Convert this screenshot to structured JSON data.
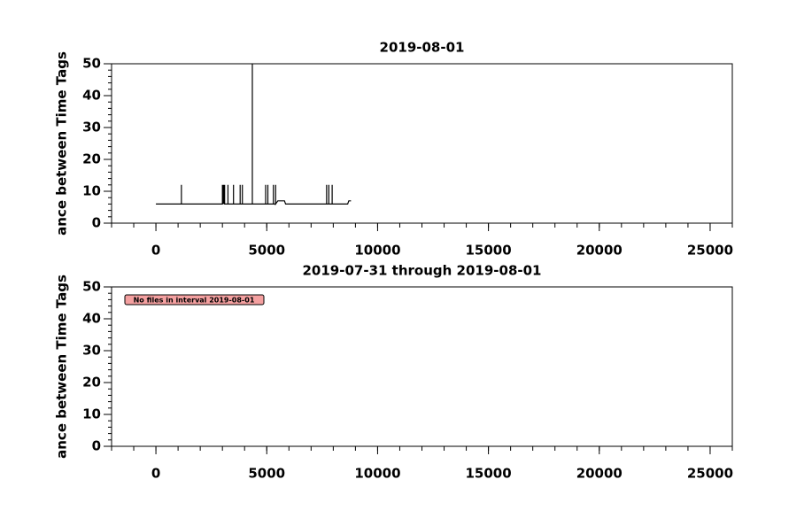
{
  "chart_data": [
    {
      "type": "line",
      "title": "2019-08-01",
      "y_label": "ance between Time Tags",
      "xlim": [
        -2000,
        26000
      ],
      "ylim": [
        0,
        50
      ],
      "xticks": [
        0,
        5000,
        10000,
        15000,
        20000,
        25000
      ],
      "yticks": [
        0,
        10,
        20,
        30,
        40,
        50
      ],
      "color": "#000000",
      "x": [
        0,
        1150,
        1150,
        1150,
        3000,
        3000,
        3000,
        3050,
        3050,
        3100,
        3100,
        3250,
        3250,
        3250,
        3500,
        3500,
        3500,
        3800,
        3800,
        3800,
        3900,
        3900,
        3900,
        4350,
        4350,
        4350,
        4950,
        4950,
        4950,
        5050,
        5050,
        5050,
        5300,
        5300,
        5300,
        5400,
        5400,
        5400,
        5500,
        5800,
        5850,
        7700,
        7700,
        7700,
        7800,
        7800,
        7800,
        7950,
        7950,
        7950,
        8650,
        8700,
        8800
      ],
      "values": [
        6,
        6,
        12,
        6,
        6,
        12,
        6,
        12,
        6,
        12,
        6,
        6,
        12,
        6,
        6,
        12,
        6,
        6,
        12,
        6,
        6,
        12,
        6,
        6,
        50,
        6,
        6,
        12,
        6,
        6,
        12,
        6,
        6,
        12,
        6,
        6,
        12,
        6,
        7,
        7,
        6,
        6,
        12,
        6,
        6,
        12,
        6,
        6,
        12,
        6,
        6,
        7,
        7
      ]
    },
    {
      "type": "line",
      "title": "2019-07-31 through 2019-08-01",
      "y_label": "ance between Time Tags",
      "xlim": [
        -2000,
        26000
      ],
      "ylim": [
        0,
        50
      ],
      "xticks": [
        0,
        5000,
        10000,
        15000,
        20000,
        25000
      ],
      "yticks": [
        0,
        10,
        20,
        30,
        40,
        50
      ],
      "annotation": "No files in interval 2019-08-01"
    }
  ]
}
